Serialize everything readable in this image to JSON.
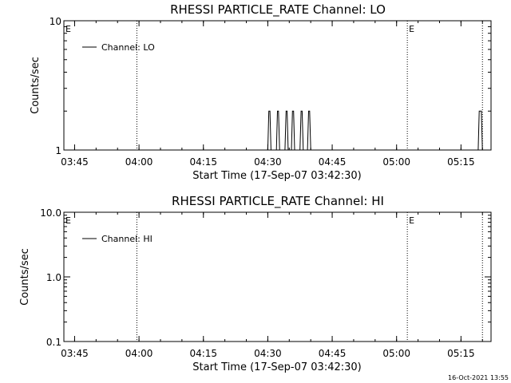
{
  "chart_data": [
    {
      "type": "line",
      "title": "RHESSI PARTICLE_RATE Channel: LO",
      "xlabel": "Start Time (17-Sep-07 03:42:30)",
      "ylabel": "Counts/sec",
      "yscale": "log",
      "ylim": [
        1,
        10
      ],
      "xlim": [
        "03:42:30",
        "05:22:00"
      ],
      "x_ticks": [
        "03:45",
        "04:00",
        "04:15",
        "04:30",
        "04:45",
        "05:00",
        "05:15"
      ],
      "y_ticks": [
        "1",
        "10"
      ],
      "legend": {
        "position": "top-left",
        "entries": [
          "Channel: LO"
        ]
      },
      "event_markers": [
        {
          "time": "03:42:30",
          "label": "E"
        },
        {
          "time": "03:59:30",
          "label": ""
        },
        {
          "time": "05:02:30",
          "label": "E"
        },
        {
          "time": "05:20:00",
          "label": ""
        }
      ],
      "series": [
        {
          "name": "Channel: LO",
          "x": [
            "03:42:30",
            "04:30:00",
            "04:30:15",
            "04:30:30",
            "04:30:45",
            "04:32:00",
            "04:32:15",
            "04:32:30",
            "04:32:45",
            "04:34:00",
            "04:34:15",
            "04:34:30",
            "04:34:45",
            "04:35:30",
            "04:35:45",
            "04:36:00",
            "04:36:15",
            "04:37:30",
            "04:37:45",
            "04:38:00",
            "04:38:15",
            "04:39:15",
            "04:39:30",
            "04:39:45",
            "04:40:00",
            "05:19:00",
            "05:19:15",
            "05:19:45",
            "05:20:00"
          ],
          "y": [
            1,
            1,
            2,
            2,
            1,
            1,
            2,
            2,
            1,
            1,
            2,
            2,
            1,
            1,
            2,
            2,
            1,
            1,
            2,
            2,
            1,
            1,
            2,
            2,
            1,
            1,
            2,
            2,
            1
          ]
        }
      ]
    },
    {
      "type": "line",
      "title": "RHESSI PARTICLE_RATE Channel: HI",
      "xlabel": "Start Time (17-Sep-07 03:42:30)",
      "ylabel": "Counts/sec",
      "yscale": "log",
      "ylim": [
        0.1,
        10
      ],
      "xlim": [
        "03:42:30",
        "05:22:00"
      ],
      "x_ticks": [
        "03:45",
        "04:00",
        "04:15",
        "04:30",
        "04:45",
        "05:00",
        "05:15"
      ],
      "y_ticks": [
        "0.1",
        "1.0",
        "10.0"
      ],
      "legend": {
        "position": "top-left",
        "entries": [
          "Channel: HI"
        ]
      },
      "event_markers": [
        {
          "time": "03:42:30",
          "label": "E"
        },
        {
          "time": "03:59:30",
          "label": ""
        },
        {
          "time": "05:02:30",
          "label": "E"
        },
        {
          "time": "05:20:00",
          "label": ""
        }
      ],
      "series": [
        {
          "name": "Channel: HI",
          "x": [],
          "y": []
        }
      ]
    }
  ],
  "footer": {
    "date_stamp": "16-Oct-2021 13:55"
  },
  "colors": {
    "background": "#ffffff",
    "ink": "#000000"
  }
}
